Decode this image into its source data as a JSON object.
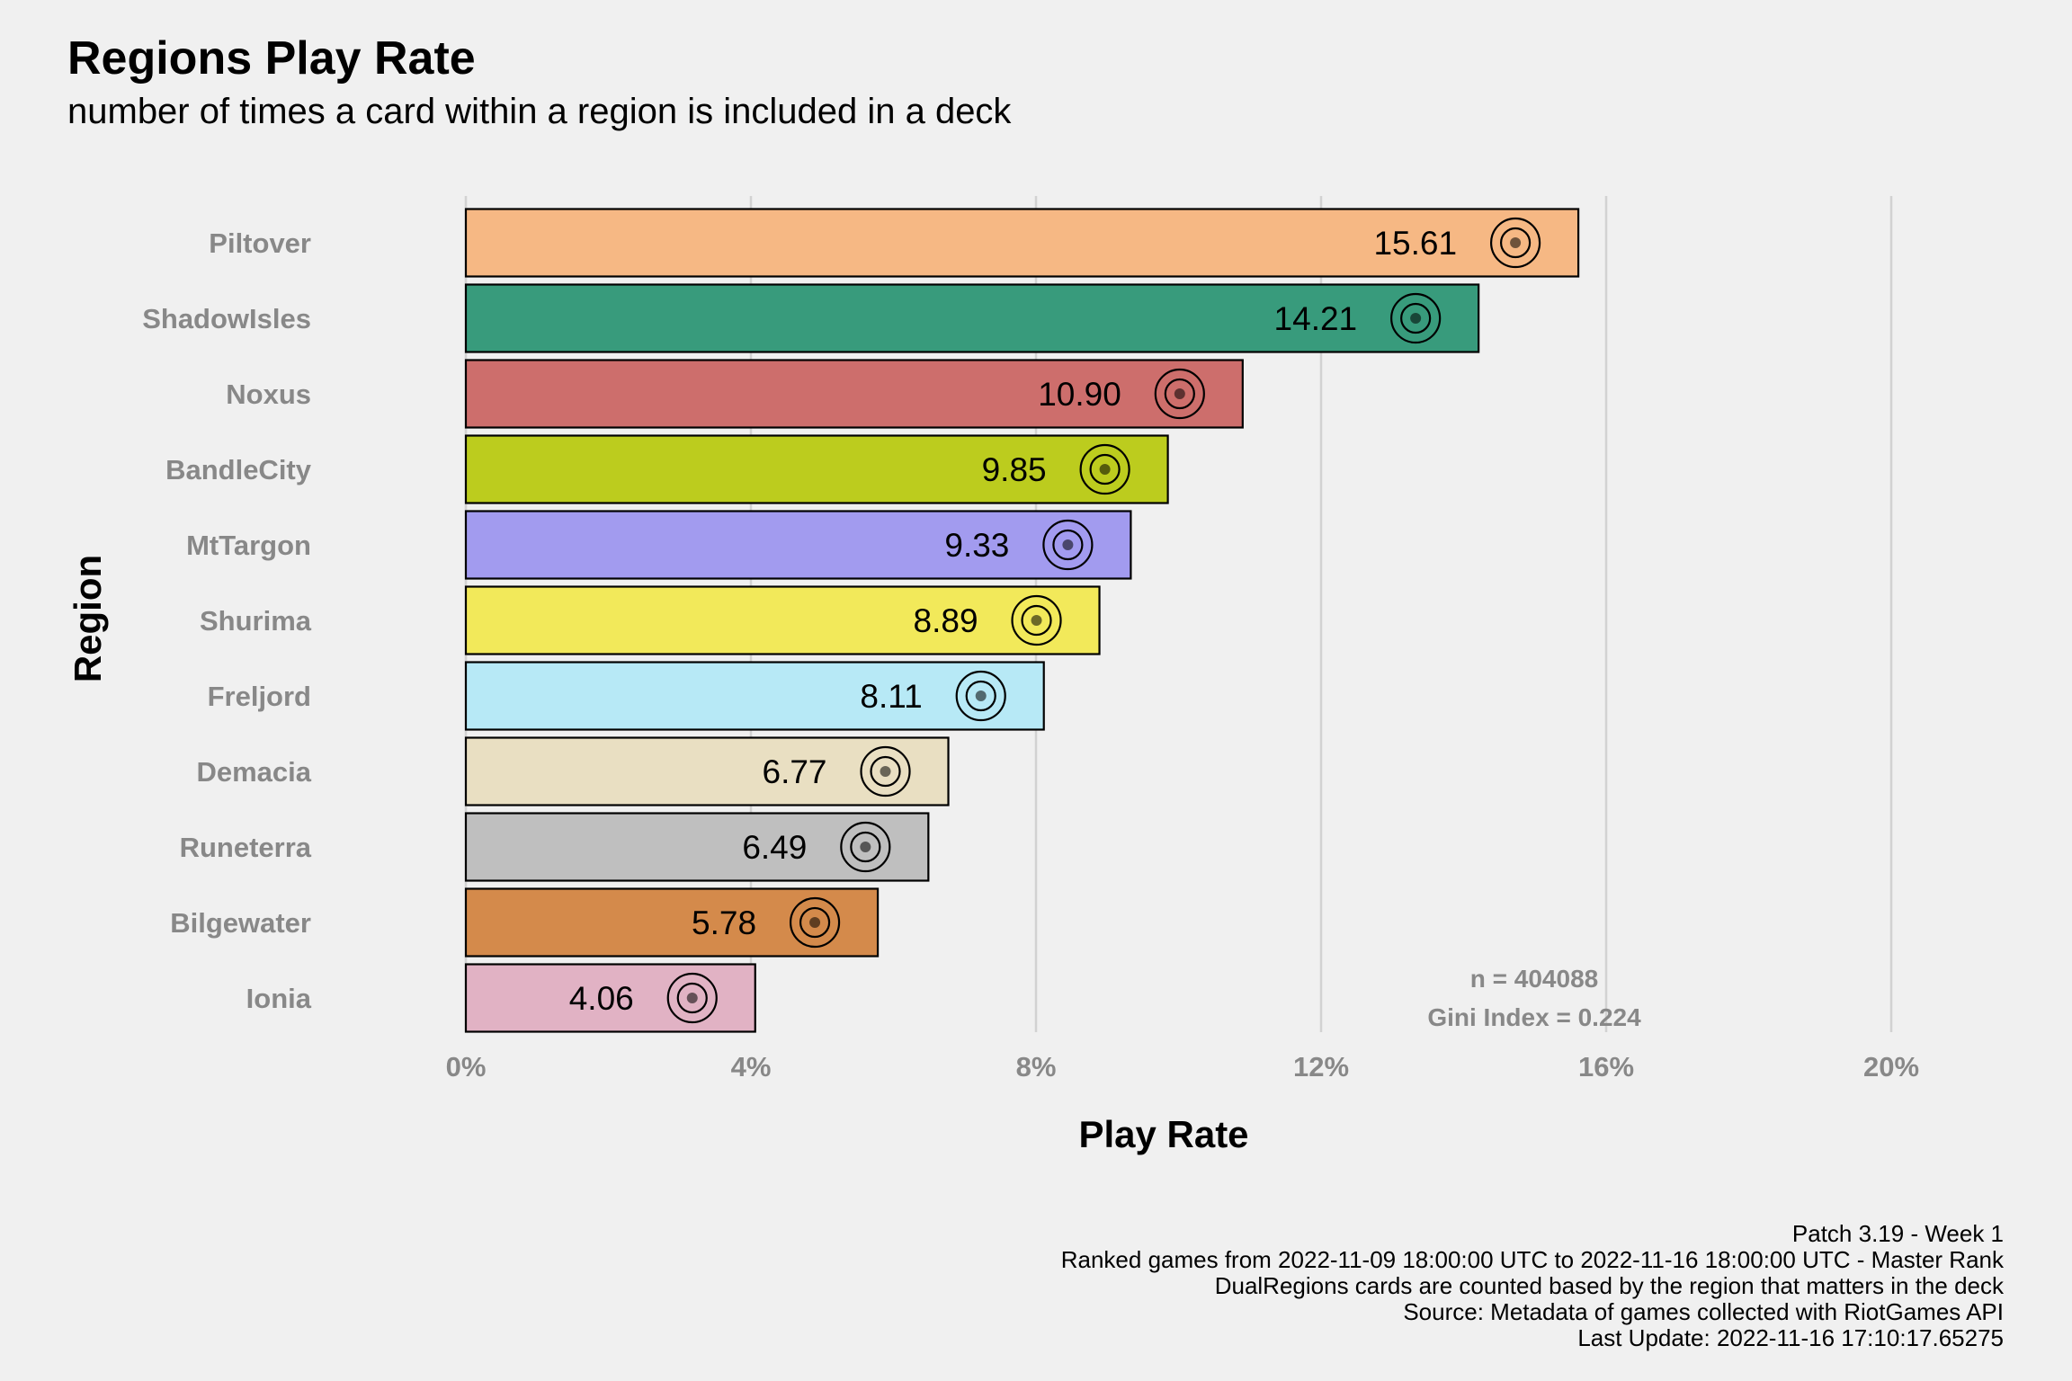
{
  "chart_data": {
    "type": "bar",
    "orientation": "horizontal",
    "title": "Regions Play Rate",
    "subtitle": "number of times a card within a region is included in a deck",
    "xlabel": "Play Rate",
    "ylabel": "Region",
    "xlim": [
      0,
      20
    ],
    "x_ticks": [
      0,
      4,
      8,
      12,
      16,
      20
    ],
    "x_tick_labels": [
      "0%",
      "4%",
      "8%",
      "12%",
      "16%",
      "20%"
    ],
    "grid": "vertical major",
    "legend": "none",
    "categories": [
      "Piltover",
      "ShadowIsles",
      "Noxus",
      "BandleCity",
      "MtTargon",
      "Shurima",
      "Freljord",
      "Demacia",
      "Runeterra",
      "Bilgewater",
      "Ionia"
    ],
    "values": [
      15.61,
      14.21,
      10.9,
      9.85,
      9.33,
      8.89,
      8.11,
      6.77,
      6.49,
      5.78,
      4.06
    ],
    "value_labels": [
      "15.61",
      "14.21",
      "10.90",
      "9.85",
      "9.33",
      "8.89",
      "8.11",
      "6.77",
      "6.49",
      "5.78",
      "4.06"
    ],
    "bar_colors": [
      "#f6b884",
      "#389b7c",
      "#cd6e6c",
      "#bccc1e",
      "#a29bef",
      "#f2e95a",
      "#b7e9f6",
      "#e9dfc2",
      "#bfbfbf",
      "#d48a4b",
      "#e1b2c4"
    ],
    "icons": [
      "piltover-emblem-icon",
      "shadow-isles-emblem-icon",
      "noxus-emblem-icon",
      "bandle-city-emblem-icon",
      "mt-targon-emblem-icon",
      "shurima-emblem-icon",
      "freljord-emblem-icon",
      "demacia-emblem-icon",
      "runeterra-emblem-icon",
      "bilgewater-emblem-icon",
      "ionia-emblem-icon"
    ],
    "annotations": [
      "n = 404088",
      "Gini Index = 0.224"
    ],
    "caption": [
      "Patch 3.19 - Week 1",
      "Ranked games from 2022-11-09 18:00:00 UTC to 2022-11-16 18:00:00 UTC - Master Rank",
      "DualRegions cards are counted based by the region that matters in the deck",
      "Source: Metadata of games collected with RiotGames API",
      "Last Update: 2022-11-16 17:10:17.65275"
    ]
  }
}
